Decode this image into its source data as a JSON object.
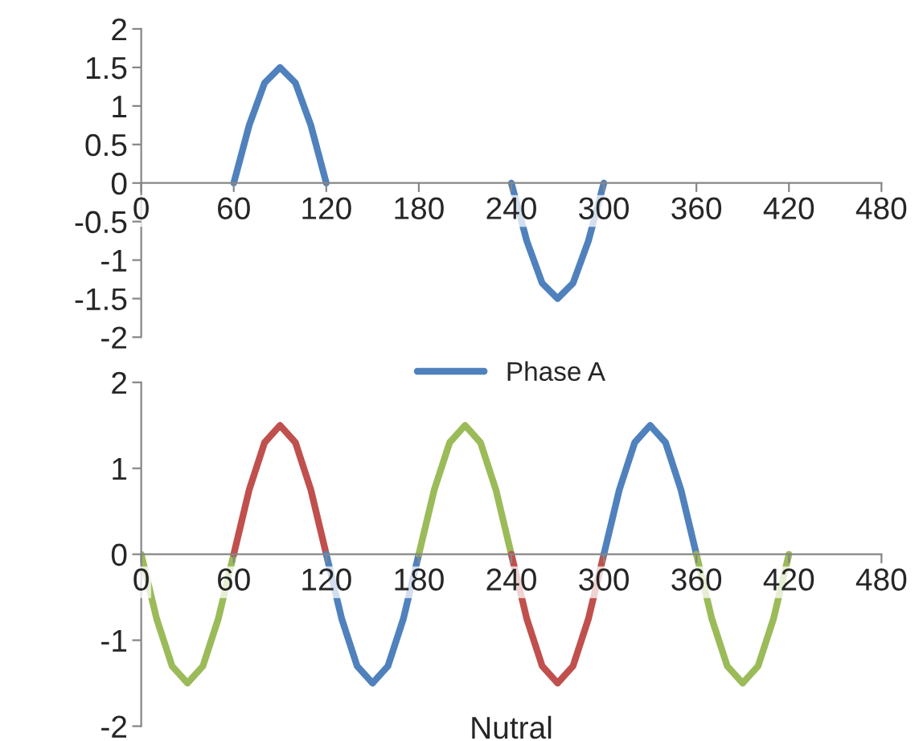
{
  "chart_data": [
    {
      "type": "line",
      "xlim": [
        0,
        480
      ],
      "xticks": [
        0,
        60,
        120,
        180,
        240,
        300,
        360,
        420,
        480
      ],
      "ylim": [
        -2,
        2
      ],
      "yticks": [
        -2,
        -1.5,
        -1,
        -0.5,
        0,
        0.5,
        1,
        1.5,
        2
      ],
      "legend": "bottom",
      "grid": false,
      "series": [
        {
          "name": "Phase A",
          "color": "#4f81bd",
          "x": [
            60,
            70,
            80,
            90,
            100,
            110,
            120,
            180,
            240,
            250,
            260,
            270,
            280,
            290,
            300
          ],
          "values": [
            0,
            0.75,
            1.3,
            1.5,
            1.3,
            0.75,
            0,
            null,
            0,
            -0.75,
            -1.3,
            -1.5,
            -1.3,
            -0.75,
            0
          ]
        }
      ]
    },
    {
      "type": "line",
      "xlabel": "Nutral",
      "xlim": [
        0,
        480
      ],
      "xticks": [
        0,
        60,
        120,
        180,
        240,
        300,
        360,
        420,
        480
      ],
      "ylim": [
        -2,
        2
      ],
      "yticks": [
        -2,
        -1,
        0,
        1,
        2
      ],
      "grid": false,
      "series": [
        {
          "color": "#9bbb59",
          "x": [
            0,
            10,
            20,
            30,
            40,
            50,
            60
          ],
          "values": [
            0,
            -0.75,
            -1.3,
            -1.5,
            -1.3,
            -0.75,
            0
          ]
        },
        {
          "color": "#c0504d",
          "x": [
            60,
            70,
            80,
            90,
            100,
            110,
            120
          ],
          "values": [
            0,
            0.75,
            1.3,
            1.5,
            1.3,
            0.75,
            0
          ]
        },
        {
          "color": "#4f81bd",
          "x": [
            120,
            130,
            140,
            150,
            160,
            170,
            180
          ],
          "values": [
            0,
            -0.75,
            -1.3,
            -1.5,
            -1.3,
            -0.75,
            0
          ]
        },
        {
          "color": "#9bbb59",
          "x": [
            180,
            190,
            200,
            210,
            220,
            230,
            240
          ],
          "values": [
            0,
            0.75,
            1.3,
            1.5,
            1.3,
            0.75,
            0
          ]
        },
        {
          "color": "#c0504d",
          "x": [
            240,
            250,
            260,
            270,
            280,
            290,
            300
          ],
          "values": [
            0,
            -0.75,
            -1.3,
            -1.5,
            -1.3,
            -0.75,
            0
          ]
        },
        {
          "color": "#4f81bd",
          "x": [
            300,
            310,
            320,
            330,
            340,
            350,
            360
          ],
          "values": [
            0,
            0.75,
            1.3,
            1.5,
            1.3,
            0.75,
            0
          ]
        },
        {
          "color": "#9bbb59",
          "x": [
            360,
            370,
            380,
            390,
            400,
            410,
            420
          ],
          "values": [
            0,
            -0.75,
            -1.3,
            -1.5,
            -1.3,
            -0.75,
            0
          ]
        }
      ]
    }
  ]
}
